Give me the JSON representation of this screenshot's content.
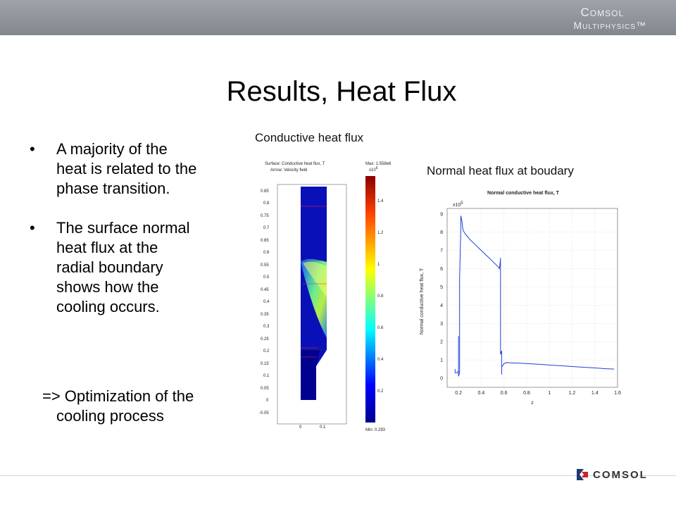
{
  "header": {
    "brand_line1": "Comsol",
    "brand_line2": "Multiphysics™"
  },
  "slide": {
    "title": "Results, Heat Flux",
    "bullets": [
      {
        "symbol": "•",
        "lines": [
          "A majority of the",
          "heat is related to the",
          "phase transition."
        ]
      },
      {
        "symbol": "•",
        "lines": [
          "The surface normal",
          "heat flux at the",
          "radial boundary",
          "shows how the",
          "cooling occurs."
        ]
      }
    ],
    "conclusion": {
      "line1": "=> Optimization of the",
      "line2": "cooling process"
    }
  },
  "figure1": {
    "caption": "Conductive heat flux",
    "header_line1": "Surface: Conductive heat flux, T",
    "header_line2": "Arrow: Velocity field",
    "max_label": "Max: 1.558e6",
    "min_label": "Min: 0.293",
    "colorbar_exponent": "x10",
    "colorbar_exponent_power": "6",
    "colorbar_ticks": [
      "1.4",
      "1.2",
      "1",
      "0.8",
      "0.6",
      "0.4",
      "0.2"
    ],
    "y_ticks": [
      "0.85",
      "0.8",
      "0.75",
      "0.7",
      "0.65",
      "0.6",
      "0.55",
      "0.5",
      "0.45",
      "0.4",
      "0.35",
      "0.3",
      "0.25",
      "0.2",
      "0.15",
      "0.1",
      "0.05",
      "0",
      "-0.05"
    ],
    "x_ticks": [
      "0",
      "0.1"
    ],
    "colors": {
      "cold": "#00008b",
      "mid": "#00ffff",
      "hot": "#ffff00",
      "max": "#ff0000"
    }
  },
  "figure2": {
    "caption": "Normal heat flux at boudary",
    "chart_title": "Normal conductive heat flux, T",
    "ylabel": "Normal conductive heat flux, T",
    "xlabel": "z",
    "y_exponent": "x10",
    "y_exponent_power": "5",
    "line_color": "#1f3fd6"
  },
  "chart_data": {
    "type": "line",
    "title": "Normal conductive heat flux, T",
    "xlabel": "z",
    "ylabel": "Normal conductive heat flux, T",
    "y_scale_note": "x10^5",
    "xlim": [
      0.1,
      1.6
    ],
    "ylim": [
      -0.5,
      9.3
    ],
    "x_ticks": [
      "0.2",
      "0.4",
      "0.6",
      "0.8",
      "1",
      "1.2",
      "1.4",
      "1.6"
    ],
    "y_ticks": [
      "0",
      "1",
      "2",
      "3",
      "4",
      "5",
      "6",
      "7",
      "8",
      "9"
    ],
    "grid": true,
    "series": [
      {
        "x": [
          0.17,
          0.17,
          0.19,
          0.2,
          0.2,
          0.2,
          0.2,
          0.21,
          0.21,
          0.22,
          0.22,
          0.23,
          0.24,
          0.26,
          0.3,
          0.35,
          0.4,
          0.45,
          0.5,
          0.55,
          0.56,
          0.57,
          0.57,
          0.57,
          0.57,
          0.57,
          0.58,
          0.58,
          0.58,
          0.59,
          0.6,
          0.62,
          0.66,
          0.7,
          0.8,
          0.9,
          1.0,
          1.1,
          1.2,
          1.3,
          1.4,
          1.5,
          1.57
        ],
        "y": [
          0.5,
          0.3,
          0.3,
          0.4,
          2.3,
          0.2,
          0.1,
          0.3,
          5.4,
          8.2,
          8.9,
          8.6,
          8.1,
          7.9,
          7.6,
          7.3,
          7.0,
          6.7,
          6.4,
          6.1,
          6.0,
          6.5,
          6.6,
          4.4,
          6.3,
          1.3,
          1.5,
          0.2,
          0.6,
          0.7,
          0.8,
          0.85,
          0.84,
          0.83,
          0.8,
          0.76,
          0.72,
          0.68,
          0.64,
          0.6,
          0.56,
          0.52,
          0.5
        ]
      }
    ]
  },
  "footer": {
    "logo_text": "COMSOL"
  }
}
